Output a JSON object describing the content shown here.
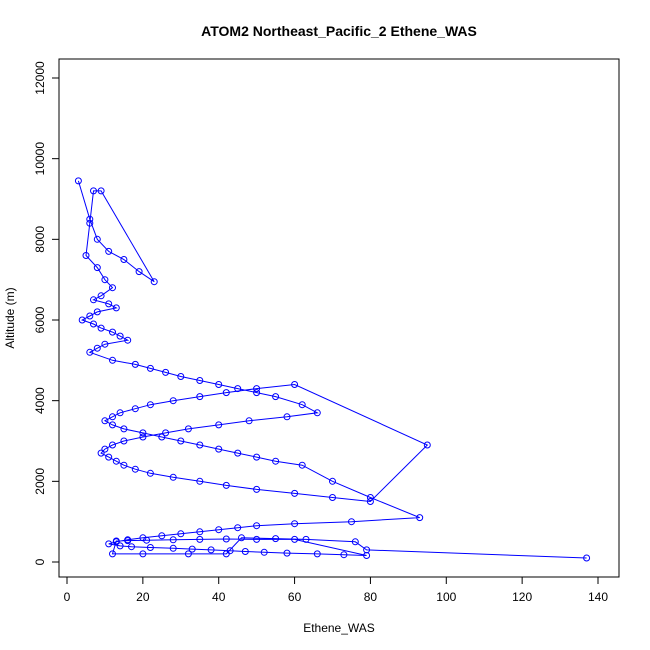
{
  "chart_data": {
    "type": "scatter",
    "title": "ATOM2 Northeast_Pacific_2 Ethene_WAS",
    "xlabel": "Ethene_WAS",
    "ylabel": "Altitude (m)",
    "xlim": [
      0,
      140
    ],
    "ylim": [
      0,
      12000
    ],
    "xticks": [
      0,
      20,
      40,
      60,
      80,
      100,
      120,
      140
    ],
    "yticks": [
      0,
      2000,
      4000,
      6000,
      8000,
      10000,
      12000
    ],
    "color": "#0000ff",
    "marker": "open-circle",
    "connected": true,
    "grid": false,
    "series": [
      {
        "x": [
          3,
          6,
          8,
          11,
          15,
          19,
          23,
          9,
          7,
          6,
          5,
          8,
          10,
          12,
          9,
          7,
          11,
          13,
          8,
          6,
          4,
          7,
          9,
          12,
          14,
          16,
          10,
          8,
          6,
          12,
          18,
          22,
          26,
          30,
          35,
          40,
          45,
          50,
          55,
          62,
          66,
          58,
          48,
          40,
          32,
          26,
          20,
          15,
          12,
          10,
          9,
          11,
          13,
          15,
          18,
          22,
          28,
          35,
          42,
          50,
          60,
          70,
          80,
          95,
          60,
          50,
          42,
          35,
          28,
          22,
          18,
          14,
          12,
          10,
          12,
          15,
          20,
          25,
          30,
          35,
          40,
          45,
          50,
          55,
          62,
          70,
          80,
          93,
          75,
          60,
          50,
          45,
          40,
          35,
          30,
          25,
          20,
          16,
          13,
          11,
          14,
          17,
          22,
          28,
          33,
          38,
          43,
          47,
          52,
          58,
          66,
          73,
          79,
          60,
          50,
          42,
          35,
          28,
          21,
          16,
          13,
          12,
          20,
          32,
          42,
          46,
          55,
          63,
          76,
          79,
          137
        ]
      }
    ],
    "y_series": [
      [
        9450,
        8500,
        8000,
        7700,
        7500,
        7200,
        6950,
        9200,
        9200,
        8400,
        7600,
        7300,
        7000,
        6800,
        6600,
        6500,
        6400,
        6300,
        6200,
        6100,
        6000,
        5900,
        5800,
        5700,
        5600,
        5500,
        5400,
        5300,
        5200,
        5000,
        4900,
        4800,
        4700,
        4600,
        4500,
        4400,
        4300,
        4200,
        4100,
        3900,
        3700,
        3600,
        3500,
        3400,
        3300,
        3200,
        3100,
        3000,
        2900,
        2800,
        2700,
        2600,
        2500,
        2400,
        2300,
        2200,
        2100,
        2000,
        1900,
        1800,
        1700,
        1600,
        1500,
        2900,
        4400,
        4300,
        4200,
        4100,
        4000,
        3900,
        3800,
        3700,
        3600,
        3500,
        3400,
        3300,
        3200,
        3100,
        3000,
        2900,
        2800,
        2700,
        2600,
        2500,
        2400,
        2000,
        1600,
        1100,
        1000,
        950,
        900,
        850,
        800,
        750,
        700,
        650,
        600,
        550,
        500,
        450,
        400,
        380,
        360,
        340,
        320,
        300,
        280,
        260,
        240,
        220,
        200,
        180,
        160,
        560,
        560,
        570,
        560,
        550,
        540,
        530,
        520,
        200,
        200,
        200,
        200,
        600,
        580,
        560,
        500,
        300,
        100
      ]
    ]
  }
}
